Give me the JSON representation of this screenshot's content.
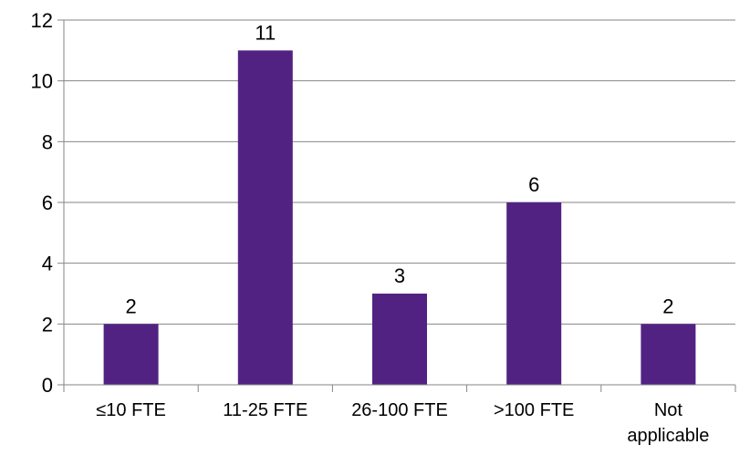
{
  "chart_data": {
    "type": "bar",
    "categories": [
      [
        "≤10 FTE"
      ],
      [
        "11-25 FTE"
      ],
      [
        "26-100 FTE"
      ],
      [
        ">100 FTE"
      ],
      [
        "Not",
        "applicable"
      ]
    ],
    "values": [
      2,
      11,
      3,
      6,
      2
    ],
    "data_labels": [
      "2",
      "11",
      "3",
      "6",
      "2"
    ],
    "title": "",
    "xlabel": "",
    "ylabel": "",
    "ylim": [
      0,
      12
    ],
    "yticks": [
      0,
      2,
      4,
      6,
      8,
      10,
      12
    ],
    "grid": true,
    "legend": "none",
    "colors": {
      "bar": "#522283",
      "grid": "#868686",
      "axis": "#868686"
    }
  }
}
